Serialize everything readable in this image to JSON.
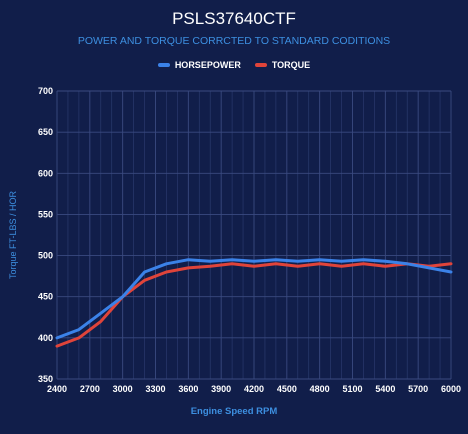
{
  "chart_data": {
    "type": "line",
    "title": "PSLS37640CTF",
    "subtitle": "POWER AND TORQUE CORRCTED TO STANDARD CODITIONS",
    "xlabel": "Engine Speed RPM",
    "ylabel": "Torque FT-LBS / HOR",
    "xlim": [
      2400,
      6000
    ],
    "ylim": [
      350,
      700
    ],
    "x_ticks": [
      "2400",
      "2700",
      "3000",
      "3300",
      "3600",
      "3900",
      "4200",
      "4500",
      "4800",
      "5100",
      "5400",
      "5700",
      "6000"
    ],
    "y_ticks": [
      "700",
      "650",
      "600",
      "550",
      "500",
      "450",
      "400",
      "350"
    ],
    "grid": true,
    "legend_position": "top-center",
    "x": [
      2400,
      2600,
      2800,
      3000,
      3200,
      3400,
      3600,
      3800,
      4000,
      4200,
      4400,
      4600,
      4800,
      5000,
      5200,
      5400,
      5600,
      5800,
      6000
    ],
    "series": [
      {
        "name": "HORSEPOWER",
        "color": "#3b82e8",
        "values": [
          400,
          410,
          430,
          450,
          480,
          490,
          495,
          493,
          495,
          493,
          495,
          493,
          495,
          493,
          495,
          493,
          490,
          485,
          480
        ]
      },
      {
        "name": "TORQUE",
        "color": "#e0443a",
        "values": [
          390,
          400,
          420,
          450,
          470,
          480,
          485,
          487,
          490,
          487,
          490,
          487,
          490,
          487,
          490,
          487,
          490,
          487,
          490
        ]
      }
    ]
  }
}
